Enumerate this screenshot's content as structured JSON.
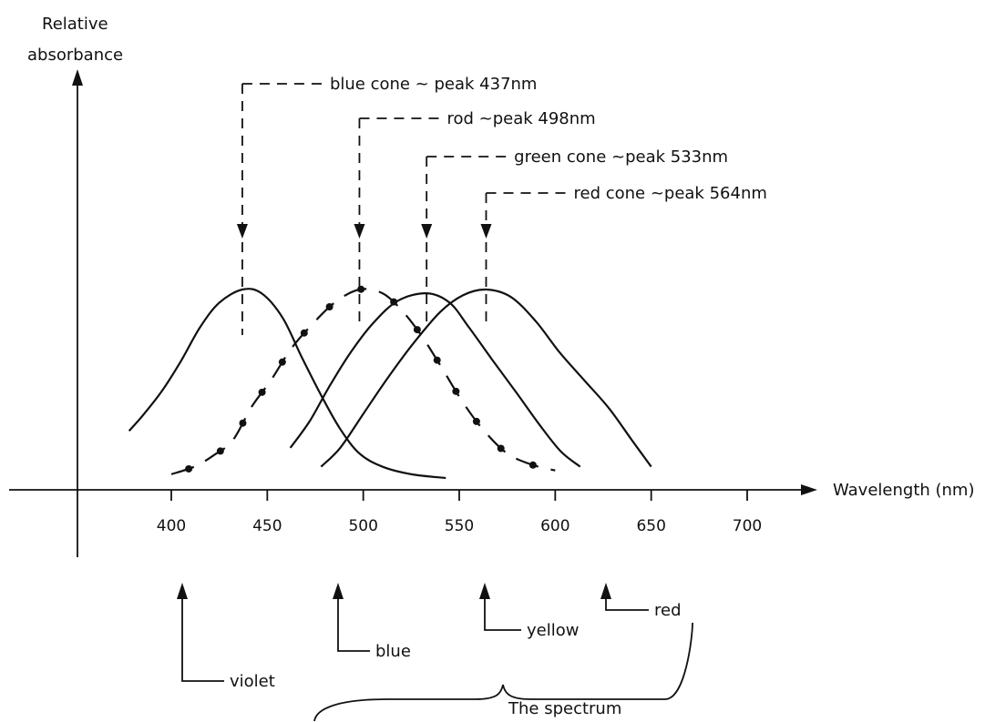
{
  "chart_data": {
    "type": "line",
    "ylabel": "Relative absorbance",
    "xlabel": "Wavelength (nm)",
    "xticks": [
      400,
      450,
      500,
      550,
      600,
      650,
      700
    ],
    "series": [
      {
        "name": "blue cone",
        "style": "solid",
        "peak": 437,
        "points": [
          [
            378,
            0.25
          ],
          [
            385,
            0.33
          ],
          [
            395,
            0.46
          ],
          [
            405,
            0.62
          ],
          [
            415,
            0.8
          ],
          [
            425,
            0.93
          ],
          [
            437,
            1.0
          ],
          [
            447,
            0.98
          ],
          [
            458,
            0.85
          ],
          [
            468,
            0.64
          ],
          [
            478,
            0.44
          ],
          [
            488,
            0.26
          ],
          [
            498,
            0.13
          ],
          [
            510,
            0.06
          ],
          [
            525,
            0.02
          ],
          [
            543,
            0.0
          ]
        ]
      },
      {
        "name": "rod",
        "style": "dash-dot",
        "peak": 498,
        "points": [
          [
            400,
            0.02
          ],
          [
            412,
            0.06
          ],
          [
            422,
            0.12
          ],
          [
            432,
            0.2
          ],
          [
            442,
            0.38
          ],
          [
            452,
            0.52
          ],
          [
            462,
            0.68
          ],
          [
            472,
            0.8
          ],
          [
            485,
            0.93
          ],
          [
            498,
            1.0
          ],
          [
            510,
            0.98
          ],
          [
            520,
            0.89
          ],
          [
            530,
            0.76
          ],
          [
            540,
            0.6
          ],
          [
            552,
            0.4
          ],
          [
            563,
            0.25
          ],
          [
            575,
            0.13
          ],
          [
            588,
            0.07
          ],
          [
            600,
            0.04
          ]
        ]
      },
      {
        "name": "green cone",
        "style": "solid",
        "peak": 533,
        "points": [
          [
            462,
            0.16
          ],
          [
            472,
            0.3
          ],
          [
            482,
            0.48
          ],
          [
            493,
            0.66
          ],
          [
            505,
            0.82
          ],
          [
            518,
            0.94
          ],
          [
            533,
            0.98
          ],
          [
            545,
            0.93
          ],
          [
            555,
            0.8
          ],
          [
            567,
            0.63
          ],
          [
            580,
            0.45
          ],
          [
            592,
            0.28
          ],
          [
            603,
            0.14
          ],
          [
            613,
            0.06
          ]
        ]
      },
      {
        "name": "red cone",
        "style": "solid",
        "peak": 564,
        "points": [
          [
            478,
            0.06
          ],
          [
            488,
            0.16
          ],
          [
            500,
            0.34
          ],
          [
            512,
            0.52
          ],
          [
            525,
            0.7
          ],
          [
            540,
            0.88
          ],
          [
            552,
            0.97
          ],
          [
            564,
            1.0
          ],
          [
            577,
            0.96
          ],
          [
            590,
            0.83
          ],
          [
            602,
            0.67
          ],
          [
            615,
            0.52
          ],
          [
            628,
            0.37
          ],
          [
            640,
            0.2
          ],
          [
            650,
            0.06
          ]
        ]
      }
    ],
    "annotations": [
      {
        "text": "blue cone ~ peak 437nm",
        "x": 437
      },
      {
        "text": "rod ~peak 498nm",
        "x": 498
      },
      {
        "text": "green cone ~peak 533nm",
        "x": 533
      },
      {
        "text": "red cone ~peak 564nm",
        "x": 564
      }
    ],
    "spectrum": {
      "label": "The spectrum",
      "bands": [
        {
          "text": "violet",
          "x": 410
        },
        {
          "text": "blue",
          "x": 487
        },
        {
          "text": "yellow",
          "x": 568
        },
        {
          "text": "red",
          "x": 626
        }
      ]
    },
    "grid": false,
    "legend": "none"
  }
}
